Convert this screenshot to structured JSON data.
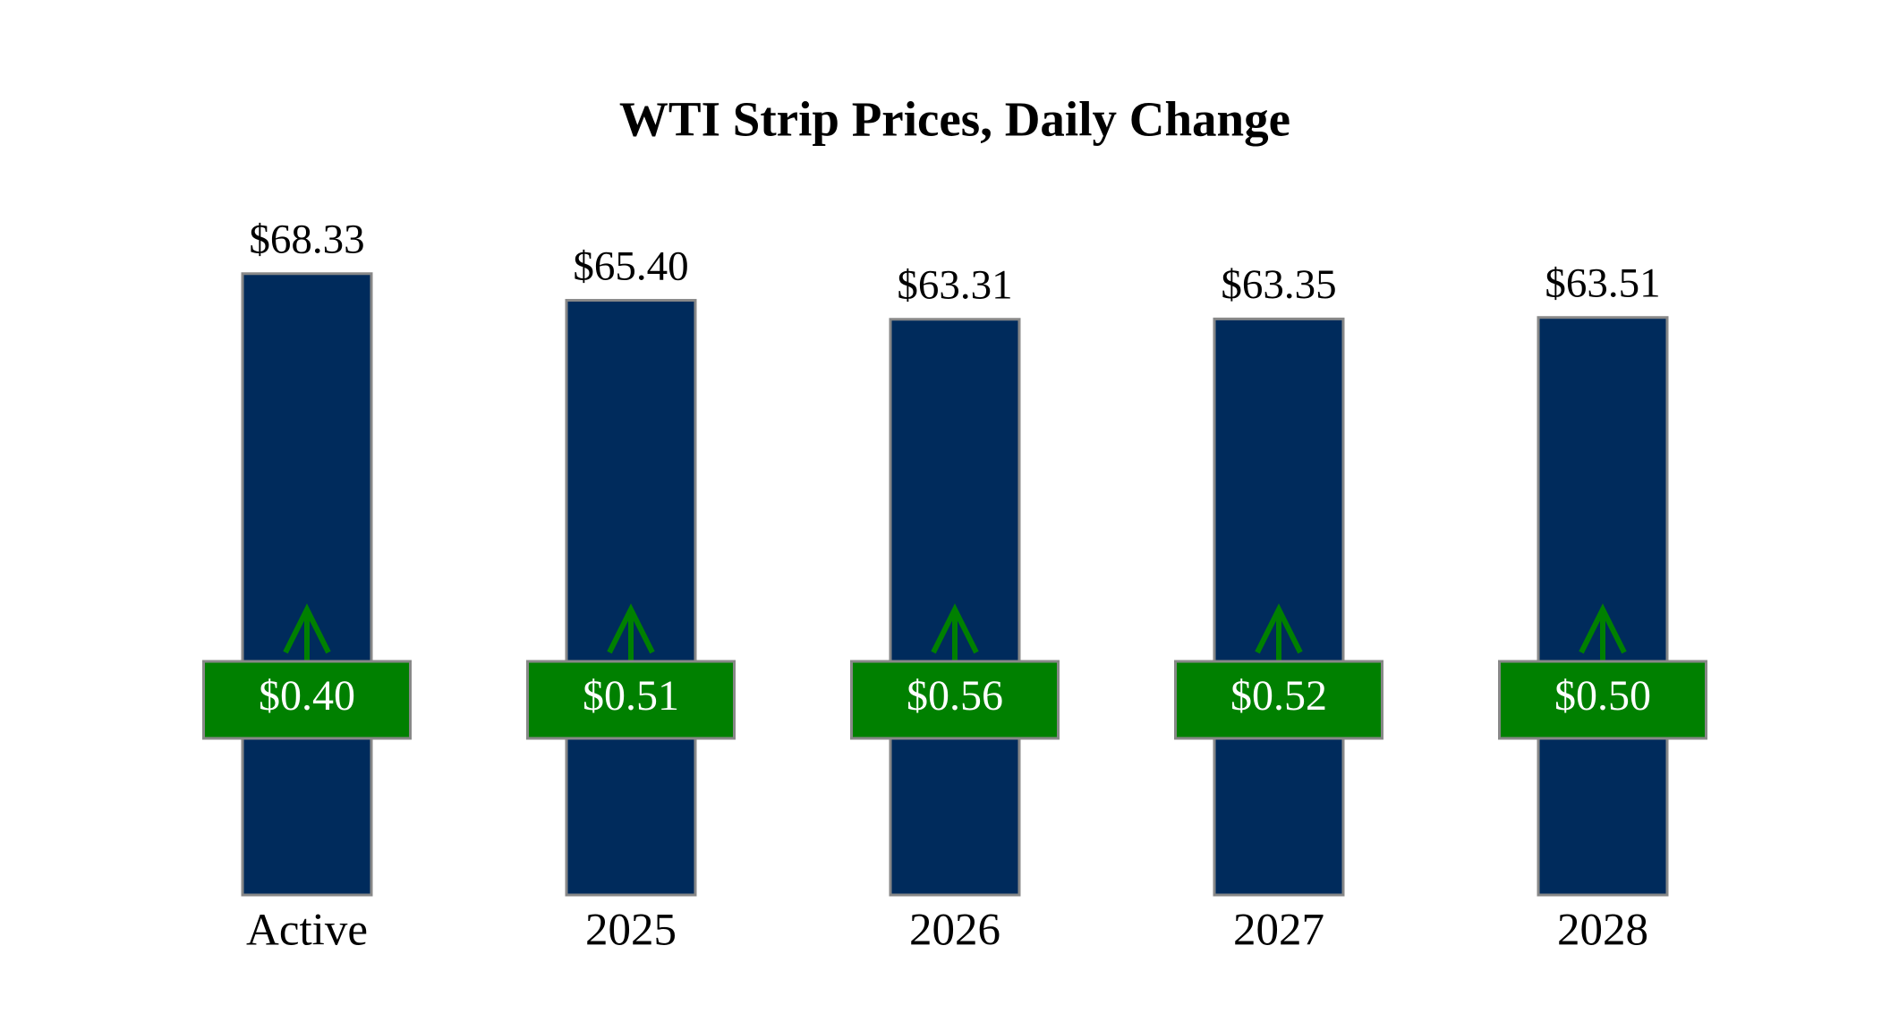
{
  "chart_data": {
    "type": "bar",
    "title": "WTI Strip Prices, Daily Change",
    "categories": [
      "Active",
      "2025",
      "2026",
      "2027",
      "2028"
    ],
    "values": [
      68.33,
      65.4,
      63.31,
      63.35,
      63.51
    ],
    "value_labels": [
      "$68.33",
      "$65.40",
      "$63.31",
      "$63.35",
      "$63.51"
    ],
    "color": "#002b5c",
    "changes": [
      0.4,
      0.51,
      0.56,
      0.52,
      0.5
    ],
    "change_labels": [
      "$0.40",
      "$0.51",
      "$0.56",
      "$0.52",
      "$0.50"
    ],
    "change_color": "#008000"
  }
}
